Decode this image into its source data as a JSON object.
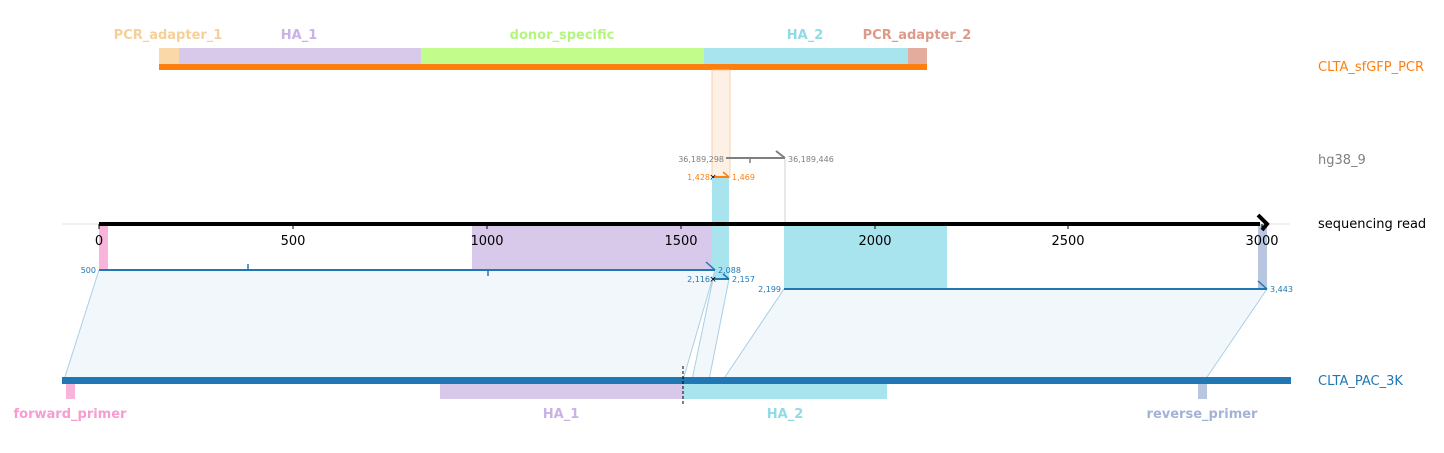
{
  "tracks": {
    "pcr": {
      "name": "CLTA_sfGFP_PCR",
      "color": "#ff7f0e"
    },
    "genome": {
      "name": "hg38_9",
      "color": "#7f7f7f"
    },
    "read": {
      "name": "sequencing read",
      "color": "#000000"
    },
    "plasmid": {
      "name": "CLTA_PAC_3K",
      "color": "#1f77b4"
    }
  },
  "pcr_features": [
    {
      "label": "PCR_adapter_1",
      "color": "#fbd8a8",
      "text_color": "#f7cf98"
    },
    {
      "label": "HA_1",
      "color": "#d8c8ea",
      "text_color": "#c9b2e6"
    },
    {
      "label": "donor_specific",
      "color": "#c2fd8c",
      "text_color": "#b3f77a"
    },
    {
      "label": "HA_2",
      "color": "#a8e4ee",
      "text_color": "#8fdbe8"
    },
    {
      "label": "PCR_adapter_2",
      "color": "#e4ac9c",
      "text_color": "#dd9a88"
    }
  ],
  "plasmid_features": [
    {
      "label": "forward_primer",
      "color": "#f9b4dc",
      "text_color": "#f79bd0"
    },
    {
      "label": "HA_1",
      "color": "#d8c8ea",
      "text_color": "#c9b2e6"
    },
    {
      "label": "HA_2",
      "color": "#a8e4ee",
      "text_color": "#8fdbe8"
    },
    {
      "label": "reverse_primer",
      "color": "#b9c6e0",
      "text_color": "#a3b3d6"
    }
  ],
  "axis": {
    "ticks": [
      "0",
      "500",
      "1000",
      "1500",
      "2000",
      "2500",
      "3000"
    ]
  },
  "coords": {
    "genome_start": "36,189,298",
    "genome_end": "36,189,446",
    "pcr_start": "1,428",
    "pcr_end": "1,469",
    "plasmid_a_start": "500",
    "plasmid_a_end": "2,088",
    "plasmid_b_start": "2,116",
    "plasmid_b_end": "2,157",
    "plasmid_c_start": "2,199",
    "plasmid_c_end": "3,443"
  }
}
